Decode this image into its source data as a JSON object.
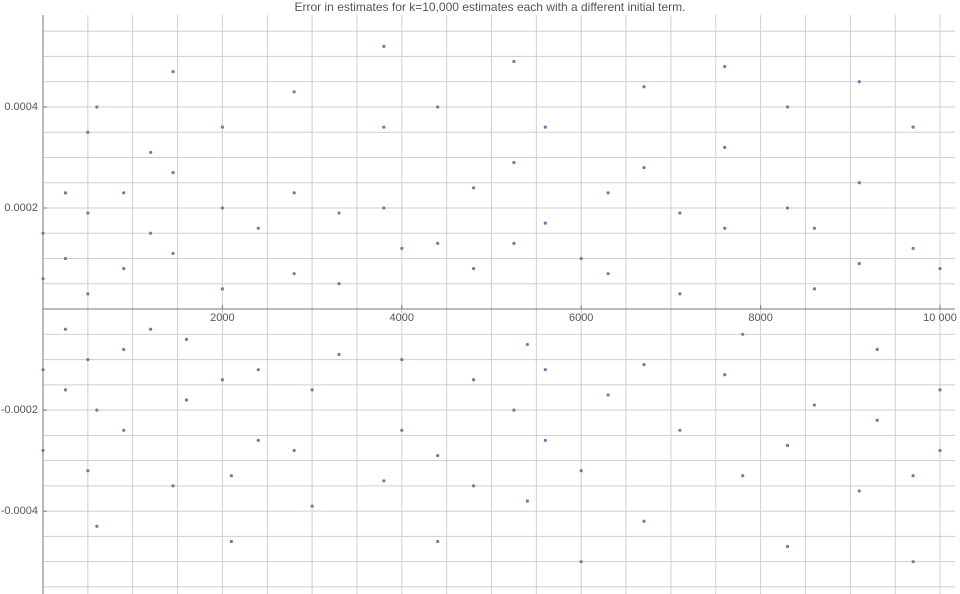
{
  "chart_data": {
    "type": "scatter",
    "title": "Error in estimates for k=10,000 estimates each with a different initial term.",
    "color": "#5e81b5",
    "x": [
      0,
      0,
      0,
      0,
      250,
      250,
      250,
      250,
      500,
      500,
      500,
      500,
      500,
      600,
      600,
      600,
      900,
      900,
      900,
      900,
      1200,
      1200,
      1200,
      1450,
      1450,
      1450,
      1450,
      1600,
      1600,
      2000,
      2000,
      2000,
      2000,
      2100,
      2100,
      2400,
      2400,
      2400,
      2800,
      2800,
      2800,
      2800,
      3000,
      3000,
      3300,
      3300,
      3300,
      3800,
      3800,
      3800,
      3800,
      4000,
      4000,
      4000,
      4400,
      4400,
      4400,
      4400,
      4800,
      4800,
      4800,
      4800,
      5250,
      5250,
      5250,
      5250,
      5400,
      5400,
      5600,
      5600,
      5600,
      5600,
      6000,
      6000,
      6000,
      6300,
      6300,
      6300,
      6700,
      6700,
      6700,
      6700,
      7100,
      7100,
      7100,
      7600,
      7600,
      7600,
      7600,
      7800,
      7800,
      8300,
      8300,
      8300,
      8300,
      8600,
      8600,
      8600,
      9100,
      9100,
      9100,
      9100,
      9300,
      9300,
      9700,
      9700,
      9700,
      9700,
      10000,
      10000,
      10000
    ],
    "values": [
      0.00015,
      6e-05,
      -0.00012,
      -0.00028,
      0.00023,
      0.0001,
      -4e-05,
      -0.00016,
      0.00035,
      0.00019,
      3e-05,
      -0.0001,
      -0.00032,
      0.0004,
      -0.00043,
      -0.0002,
      0.00023,
      8e-05,
      -8e-05,
      -0.00024,
      0.00031,
      0.00015,
      -4e-05,
      0.00047,
      0.00027,
      0.00011,
      -0.00035,
      -0.00018,
      -6e-05,
      0.00036,
      0.0002,
      4e-05,
      -0.00014,
      -0.00046,
      -0.00033,
      0.00016,
      -0.00012,
      -0.00026,
      0.00043,
      0.00023,
      7e-05,
      -0.00028,
      -0.00039,
      -0.00016,
      0.00019,
      5e-05,
      -9e-05,
      0.00052,
      0.00036,
      0.0002,
      -0.00034,
      0.00012,
      -0.0001,
      -0.00024,
      0.0004,
      0.00013,
      -0.00046,
      -0.00029,
      0.00024,
      8e-05,
      -0.00014,
      -0.00035,
      0.00049,
      0.00029,
      0.00013,
      -0.0002,
      -0.00038,
      -7e-05,
      0.00036,
      0.00017,
      -0.00012,
      -0.00026,
      0.0001,
      -0.0005,
      -0.00032,
      0.00023,
      7e-05,
      -0.00017,
      0.00044,
      0.00028,
      -0.00011,
      -0.00042,
      0.00019,
      3e-05,
      -0.00024,
      0.00048,
      0.00032,
      0.00016,
      -0.00013,
      -0.00033,
      -5e-05,
      0.0004,
      0.0002,
      -0.00047,
      -0.00027,
      0.00016,
      4e-05,
      -0.00019,
      0.00045,
      0.00025,
      9e-05,
      -0.00036,
      -0.00022,
      -8e-05,
      0.00036,
      0.00012,
      -0.0005,
      -0.00033,
      8e-05,
      -0.00016,
      -0.00028
    ],
    "xlim": [
      0,
      10000
    ],
    "ylim": [
      -0.000564,
      0.000582
    ],
    "xticks": [
      2000,
      4000,
      6000,
      8000,
      {
        "value": 10000,
        "label": "10 000"
      }
    ],
    "yticks": [
      -0.0004,
      -0.0002,
      0.0002,
      0.0004
    ],
    "xgrid": [
      0,
      500,
      1000,
      1500,
      2000,
      2500,
      3000,
      3500,
      4000,
      4500,
      5000,
      5500,
      6000,
      6500,
      7000,
      7500,
      8000,
      8500,
      9000,
      9500,
      10000
    ],
    "ygrid": [
      -0.00055,
      -0.0005,
      -0.00045,
      -0.0004,
      -0.00035,
      -0.0003,
      -0.00025,
      -0.0002,
      -0.00015,
      -0.0001,
      -5e-05,
      5e-05,
      0.0001,
      0.00015,
      0.0002,
      0.00025,
      0.0003,
      0.00035,
      0.0004,
      0.00045,
      0.0005,
      0.00055
    ],
    "grid": true
  }
}
